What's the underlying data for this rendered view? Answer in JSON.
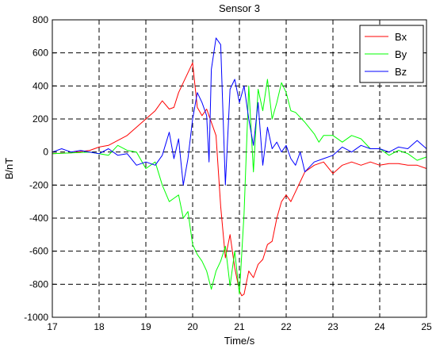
{
  "chart_data": {
    "type": "line",
    "title": "Sensor 3",
    "xlabel": "Time/s",
    "ylabel": "B/nT",
    "xlim": [
      17,
      25
    ],
    "ylim": [
      -1000,
      800
    ],
    "xticks": [
      17,
      18,
      19,
      20,
      21,
      22,
      23,
      24,
      25
    ],
    "yticks": [
      -1000,
      -800,
      -600,
      -400,
      -200,
      0,
      200,
      400,
      600,
      800
    ],
    "grid": true,
    "legend_position": "top-right",
    "series": [
      {
        "name": "Bx",
        "color": "#ff0000",
        "points": [
          [
            17.0,
            -10
          ],
          [
            17.4,
            -5
          ],
          [
            17.8,
            10
          ],
          [
            18.0,
            30
          ],
          [
            18.2,
            40
          ],
          [
            18.4,
            70
          ],
          [
            18.6,
            100
          ],
          [
            18.8,
            150
          ],
          [
            19.0,
            200
          ],
          [
            19.2,
            250
          ],
          [
            19.35,
            310
          ],
          [
            19.5,
            260
          ],
          [
            19.6,
            270
          ],
          [
            19.7,
            360
          ],
          [
            19.8,
            420
          ],
          [
            19.9,
            480
          ],
          [
            20.0,
            540
          ],
          [
            20.05,
            400
          ],
          [
            20.1,
            270
          ],
          [
            20.2,
            220
          ],
          [
            20.3,
            260
          ],
          [
            20.4,
            180
          ],
          [
            20.5,
            100
          ],
          [
            20.6,
            -330
          ],
          [
            20.7,
            -640
          ],
          [
            20.8,
            -500
          ],
          [
            20.9,
            -700
          ],
          [
            21.0,
            -840
          ],
          [
            21.05,
            -870
          ],
          [
            21.1,
            -860
          ],
          [
            21.2,
            -720
          ],
          [
            21.3,
            -760
          ],
          [
            21.4,
            -680
          ],
          [
            21.5,
            -650
          ],
          [
            21.6,
            -560
          ],
          [
            21.7,
            -540
          ],
          [
            21.8,
            -400
          ],
          [
            21.9,
            -300
          ],
          [
            22.0,
            -260
          ],
          [
            22.1,
            -300
          ],
          [
            22.2,
            -240
          ],
          [
            22.4,
            -120
          ],
          [
            22.6,
            -80
          ],
          [
            22.8,
            -60
          ],
          [
            23.0,
            -130
          ],
          [
            23.2,
            -80
          ],
          [
            23.4,
            -60
          ],
          [
            23.6,
            -80
          ],
          [
            23.8,
            -60
          ],
          [
            24.0,
            -80
          ],
          [
            24.2,
            -70
          ],
          [
            24.4,
            -70
          ],
          [
            24.6,
            -80
          ],
          [
            24.8,
            -80
          ],
          [
            25.0,
            -100
          ]
        ]
      },
      {
        "name": "By",
        "color": "#00ff00",
        "points": [
          [
            17.0,
            -10
          ],
          [
            17.4,
            -5
          ],
          [
            17.8,
            0
          ],
          [
            18.0,
            -10
          ],
          [
            18.2,
            -20
          ],
          [
            18.4,
            40
          ],
          [
            18.6,
            10
          ],
          [
            18.8,
            0
          ],
          [
            19.0,
            -100
          ],
          [
            19.2,
            -60
          ],
          [
            19.35,
            -200
          ],
          [
            19.5,
            -300
          ],
          [
            19.6,
            -280
          ],
          [
            19.7,
            -260
          ],
          [
            19.8,
            -400
          ],
          [
            19.9,
            -360
          ],
          [
            20.0,
            -560
          ],
          [
            20.1,
            -620
          ],
          [
            20.2,
            -660
          ],
          [
            20.3,
            -720
          ],
          [
            20.4,
            -830
          ],
          [
            20.5,
            -720
          ],
          [
            20.6,
            -660
          ],
          [
            20.7,
            -570
          ],
          [
            20.8,
            -810
          ],
          [
            20.9,
            -600
          ],
          [
            21.0,
            -860
          ],
          [
            21.1,
            -370
          ],
          [
            21.2,
            400
          ],
          [
            21.3,
            -120
          ],
          [
            21.4,
            380
          ],
          [
            21.5,
            250
          ],
          [
            21.6,
            440
          ],
          [
            21.7,
            200
          ],
          [
            21.8,
            300
          ],
          [
            21.9,
            420
          ],
          [
            22.0,
            360
          ],
          [
            22.1,
            250
          ],
          [
            22.2,
            240
          ],
          [
            22.4,
            180
          ],
          [
            22.6,
            110
          ],
          [
            22.7,
            60
          ],
          [
            22.8,
            100
          ],
          [
            23.0,
            100
          ],
          [
            23.2,
            60
          ],
          [
            23.4,
            100
          ],
          [
            23.6,
            80
          ],
          [
            23.8,
            20
          ],
          [
            24.0,
            20
          ],
          [
            24.2,
            -20
          ],
          [
            24.4,
            10
          ],
          [
            24.6,
            -10
          ],
          [
            24.8,
            -50
          ],
          [
            25.0,
            -30
          ]
        ]
      },
      {
        "name": "Bz",
        "color": "#0000ff",
        "points": [
          [
            17.0,
            0
          ],
          [
            17.2,
            20
          ],
          [
            17.4,
            0
          ],
          [
            17.6,
            10
          ],
          [
            17.8,
            0
          ],
          [
            18.0,
            -10
          ],
          [
            18.2,
            20
          ],
          [
            18.4,
            -20
          ],
          [
            18.6,
            -10
          ],
          [
            18.8,
            -80
          ],
          [
            19.0,
            -60
          ],
          [
            19.2,
            -80
          ],
          [
            19.35,
            -20
          ],
          [
            19.5,
            120
          ],
          [
            19.6,
            -40
          ],
          [
            19.7,
            80
          ],
          [
            19.8,
            -200
          ],
          [
            19.9,
            -40
          ],
          [
            20.0,
            200
          ],
          [
            20.1,
            360
          ],
          [
            20.2,
            300
          ],
          [
            20.3,
            220
          ],
          [
            20.35,
            -60
          ],
          [
            20.4,
            500
          ],
          [
            20.5,
            690
          ],
          [
            20.6,
            650
          ],
          [
            20.7,
            -200
          ],
          [
            20.8,
            380
          ],
          [
            20.9,
            440
          ],
          [
            21.0,
            300
          ],
          [
            21.1,
            400
          ],
          [
            21.2,
            200
          ],
          [
            21.3,
            40
          ],
          [
            21.4,
            300
          ],
          [
            21.5,
            -80
          ],
          [
            21.6,
            150
          ],
          [
            21.7,
            20
          ],
          [
            21.8,
            60
          ],
          [
            21.9,
            0
          ],
          [
            22.0,
            40
          ],
          [
            22.1,
            -40
          ],
          [
            22.2,
            -80
          ],
          [
            22.3,
            0
          ],
          [
            22.4,
            -120
          ],
          [
            22.6,
            -60
          ],
          [
            22.8,
            -40
          ],
          [
            23.0,
            -20
          ],
          [
            23.2,
            30
          ],
          [
            23.4,
            0
          ],
          [
            23.6,
            40
          ],
          [
            23.8,
            20
          ],
          [
            24.0,
            20
          ],
          [
            24.2,
            0
          ],
          [
            24.4,
            30
          ],
          [
            24.6,
            20
          ],
          [
            24.8,
            70
          ],
          [
            25.0,
            20
          ]
        ]
      }
    ]
  }
}
